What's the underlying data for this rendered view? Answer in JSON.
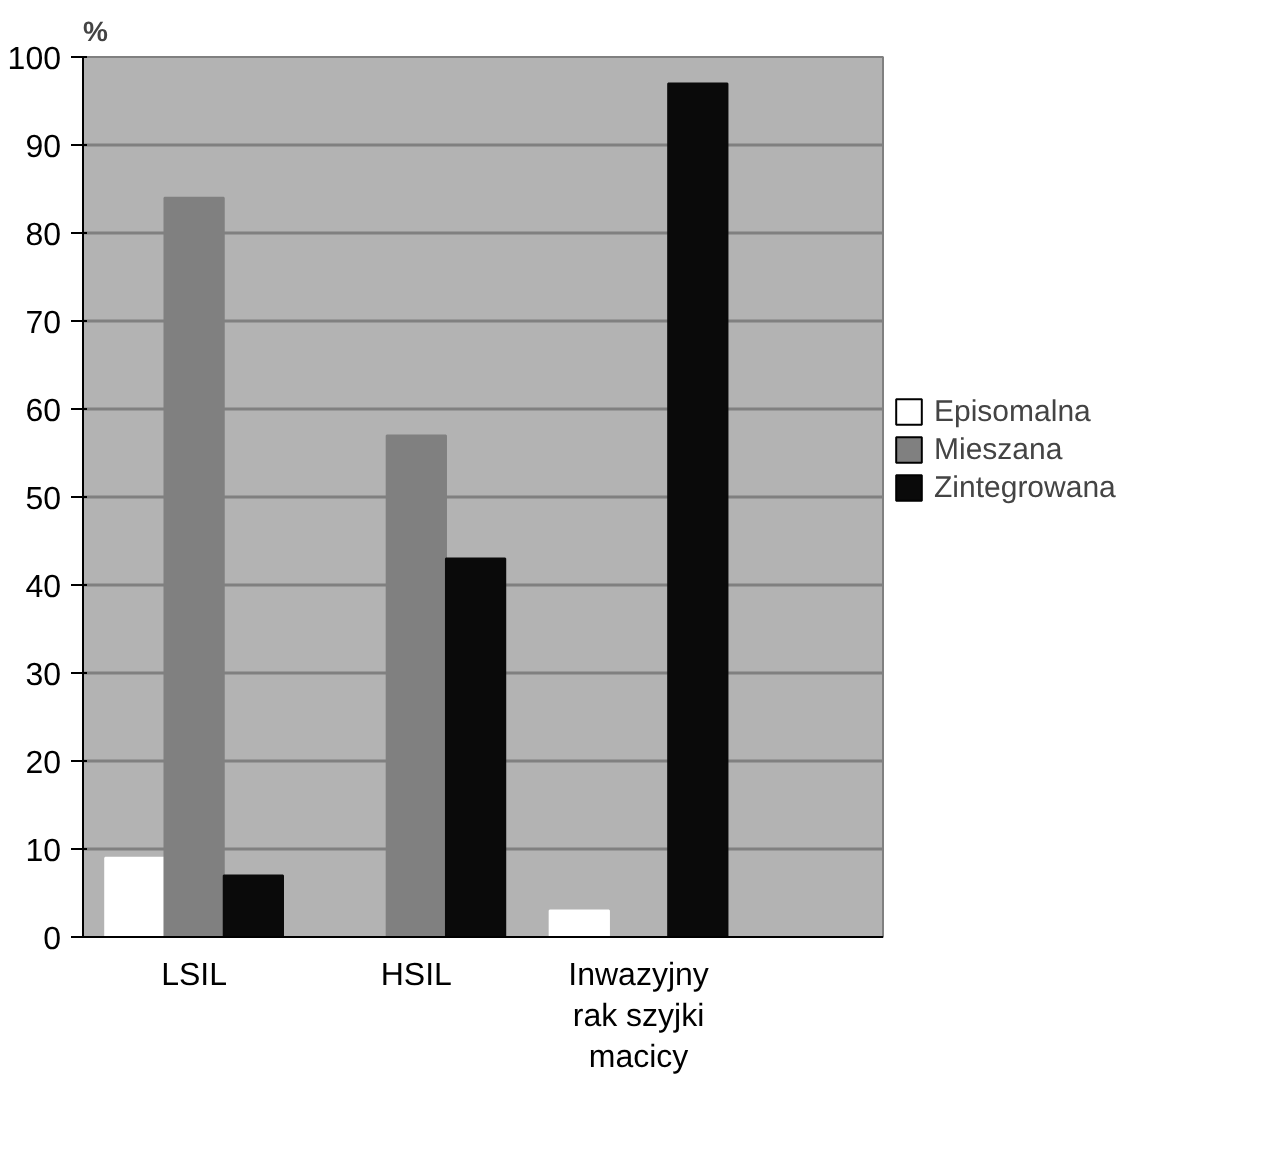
{
  "chart_data": {
    "type": "bar",
    "ylabel": "%",
    "categories": [
      "LSIL",
      "HSIL",
      "Inwazyjny rak szyjki macicy"
    ],
    "series": [
      {
        "name": "Episomalna",
        "color": "#ffffff",
        "values": [
          9,
          0,
          3
        ]
      },
      {
        "name": "Mieszana",
        "color": "#808080",
        "values": [
          84,
          57,
          0
        ]
      },
      {
        "name": "Zintegrowana",
        "color": "#0a0a0a",
        "values": [
          7,
          43,
          97
        ]
      }
    ],
    "ylim": [
      0,
      100
    ],
    "yticks": [
      0,
      10,
      20,
      30,
      40,
      50,
      60,
      70,
      80,
      90,
      100
    ],
    "grid": "y",
    "legend": "right"
  }
}
